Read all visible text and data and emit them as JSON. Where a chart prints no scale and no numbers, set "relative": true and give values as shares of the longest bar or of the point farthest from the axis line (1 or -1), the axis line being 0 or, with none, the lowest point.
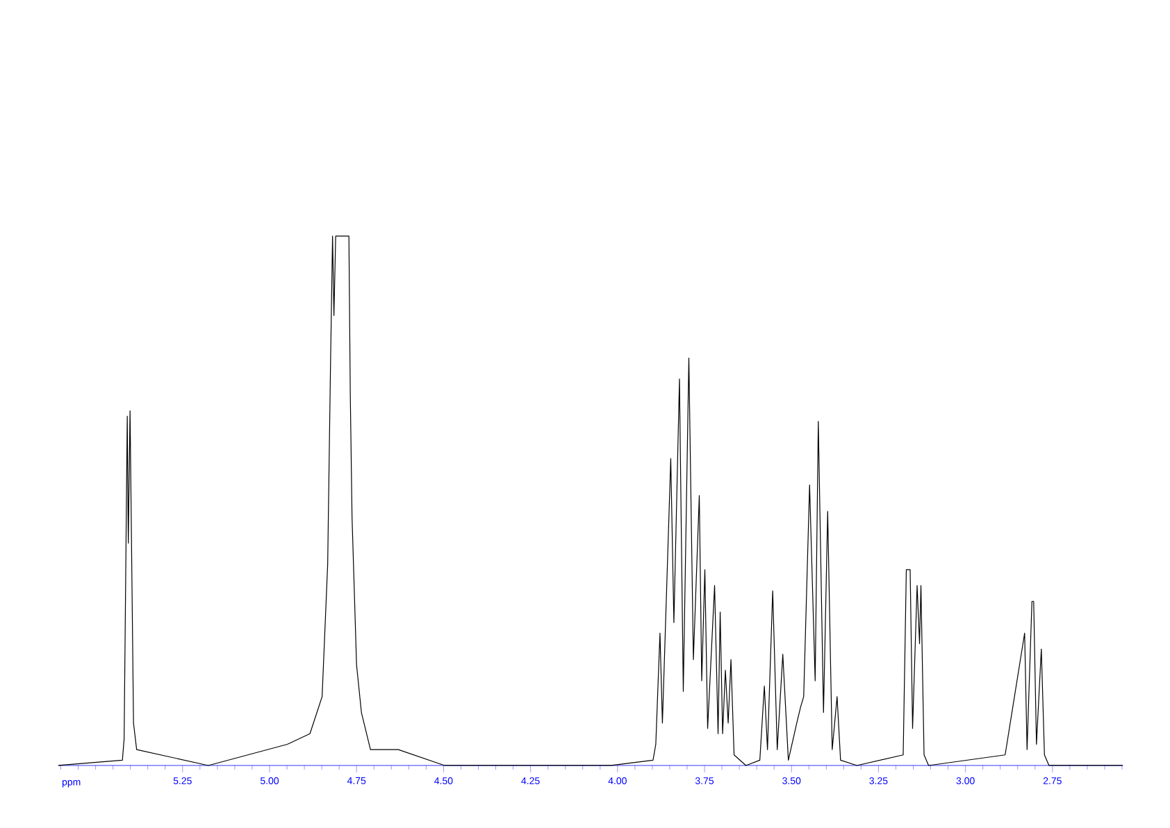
{
  "chart_data": {
    "type": "line",
    "relative": true,
    "xlabel": "ppm",
    "xlim": [
      5.607,
      2.548
    ],
    "xticks": [
      5.25,
      {
        "value": 5.0,
        "label": "5.00"
      },
      4.75,
      {
        "value": 4.5,
        "label": "4.50"
      },
      4.25,
      {
        "value": 4.0,
        "label": "4.00"
      },
      3.75,
      {
        "value": 3.5,
        "label": "3.50"
      },
      3.25,
      {
        "value": 3.0,
        "label": "3.00"
      },
      2.75
    ],
    "tick_labels": "x",
    "marker": "none",
    "line_style": "solid",
    "series": [
      {
        "color": "#000000",
        "x": [
          5.607,
          5.423,
          5.418,
          5.409,
          5.406,
          5.401,
          5.391,
          5.382,
          5.176,
          4.949,
          4.884,
          4.849,
          4.833,
          4.825,
          4.819,
          4.815,
          4.81,
          4.772,
          4.768,
          4.763,
          4.75,
          4.736,
          4.71,
          4.63,
          4.497,
          4.018,
          3.898,
          3.89,
          3.878,
          3.871,
          3.847,
          3.838,
          3.822,
          3.811,
          3.795,
          3.782,
          3.765,
          3.758,
          3.749,
          3.741,
          3.721,
          3.711,
          3.705,
          3.698,
          3.69,
          3.682,
          3.674,
          3.665,
          3.631,
          3.591,
          3.578,
          3.569,
          3.554,
          3.541,
          3.525,
          3.509,
          3.485,
          3.474,
          3.465,
          3.448,
          3.432,
          3.423,
          3.408,
          3.396,
          3.383,
          3.369,
          3.359,
          3.312,
          3.179,
          3.17,
          3.159,
          3.152,
          3.139,
          3.132,
          3.128,
          3.119,
          3.106,
          2.886,
          2.83,
          2.823,
          2.809,
          2.804,
          2.796,
          2.782,
          2.773,
          2.76,
          2.548
        ],
        "values": [
          0,
          0.01,
          0.05,
          0.66,
          0.42,
          0.67,
          0.08,
          0.03,
          0,
          0.04,
          0.06,
          0.13,
          0.38,
          0.75,
          1,
          0.85,
          1,
          1,
          0.7,
          0.47,
          0.19,
          0.1,
          0.03,
          0.03,
          0,
          0,
          0.01,
          0.04,
          0.25,
          0.08,
          0.58,
          0.27,
          0.73,
          0.14,
          0.77,
          0.2,
          0.51,
          0.16,
          0.37,
          0.07,
          0.34,
          0.06,
          0.29,
          0.06,
          0.18,
          0.08,
          0.2,
          0.02,
          0,
          0.01,
          0.15,
          0.03,
          0.33,
          0.03,
          0.21,
          0.01,
          0.08,
          0.11,
          0.13,
          0.53,
          0.16,
          0.65,
          0.1,
          0.48,
          0.03,
          0.13,
          0.01,
          0,
          0.02,
          0.37,
          0.37,
          0.07,
          0.34,
          0.23,
          0.34,
          0.02,
          0,
          0.02,
          0.25,
          0.03,
          0.31,
          0.31,
          0.04,
          0.22,
          0.02,
          0,
          0
        ]
      }
    ]
  }
}
